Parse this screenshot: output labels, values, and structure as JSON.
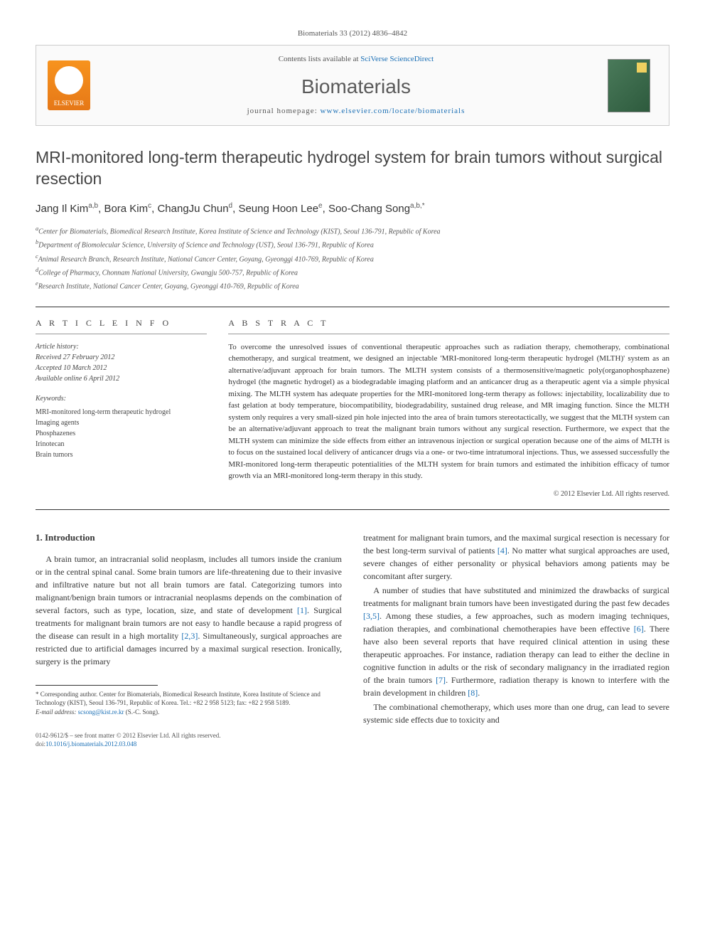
{
  "citation": "Biomaterials 33 (2012) 4836–4842",
  "banner": {
    "contents_prefix": "Contents lists available at ",
    "contents_link": "SciVerse ScienceDirect",
    "journal_name": "Biomaterials",
    "homepage_prefix": "journal homepage: ",
    "homepage_url": "www.elsevier.com/locate/biomaterials",
    "publisher": "ELSEVIER"
  },
  "title": "MRI-monitored long-term therapeutic hydrogel system for brain tumors without surgical resection",
  "authors_html": "Jang Il Kim<sup>a,b</sup>, Bora Kim<sup>c</sup>, ChangJu Chun<sup>d</sup>, Seung Hoon Lee<sup>e</sup>, Soo-Chang Song<sup>a,b,*</sup>",
  "affiliations": [
    "a Center for Biomaterials, Biomedical Research Institute, Korea Institute of Science and Technology (KIST), Seoul 136-791, Republic of Korea",
    "b Department of Biomolecular Science, University of Science and Technology (UST), Seoul 136-791, Republic of Korea",
    "c Animal Research Branch, Research Institute, National Cancer Center, Goyang, Gyeonggi 410-769, Republic of Korea",
    "d College of Pharmacy, Chonnam National University, Gwangju 500-757, Republic of Korea",
    "e Research Institute, National Cancer Center, Goyang, Gyeonggi 410-769, Republic of Korea"
  ],
  "article_info": {
    "header": "A R T I C L E   I N F O",
    "history_label": "Article history:",
    "history": [
      "Received 27 February 2012",
      "Accepted 10 March 2012",
      "Available online 6 April 2012"
    ],
    "keywords_label": "Keywords:",
    "keywords": [
      "MRI-monitored long-term therapeutic hydrogel",
      "Imaging agents",
      "Phosphazenes",
      "Irinotecan",
      "Brain tumors"
    ]
  },
  "abstract": {
    "header": "A B S T R A C T",
    "text": "To overcome the unresolved issues of conventional therapeutic approaches such as radiation therapy, chemotherapy, combinational chemotherapy, and surgical treatment, we designed an injectable 'MRI-monitored long-term therapeutic hydrogel (MLTH)' system as an alternative/adjuvant approach for brain tumors. The MLTH system consists of a thermosensitive/magnetic poly(organophosphazene) hydrogel (the magnetic hydrogel) as a biodegradable imaging platform and an anticancer drug as a therapeutic agent via a simple physical mixing. The MLTH system has adequate properties for the MRI-monitored long-term therapy as follows: injectability, localizability due to fast gelation at body temperature, biocompatibility, biodegradability, sustained drug release, and MR imaging function. Since the MLTH system only requires a very small-sized pin hole injected into the area of brain tumors stereotactically, we suggest that the MLTH system can be an alternative/adjuvant approach to treat the malignant brain tumors without any surgical resection. Furthermore, we expect that the MLTH system can minimize the side effects from either an intravenous injection or surgical operation because one of the aims of MLTH is to focus on the sustained local delivery of anticancer drugs via a one- or two-time intratumoral injections. Thus, we assessed successfully the MRI-monitored long-term therapeutic potentialities of the MLTH system for brain tumors and estimated the inhibition efficacy of tumor growth via an MRI-monitored long-term therapy in this study.",
    "copyright": "© 2012 Elsevier Ltd. All rights reserved."
  },
  "intro": {
    "heading": "1. Introduction",
    "para1": "A brain tumor, an intracranial solid neoplasm, includes all tumors inside the cranium or in the central spinal canal. Some brain tumors are life-threatening due to their invasive and infiltrative nature but not all brain tumors are fatal. Categorizing tumors into malignant/benign brain tumors or intracranial neoplasms depends on the combination of several factors, such as type, location, size, and state of development [1]. Surgical treatments for malignant brain tumors are not easy to handle because a rapid progress of the disease can result in a high mortality [2,3]. Simultaneously, surgical approaches are restricted due to artificial damages incurred by a maximal surgical resection. Ironically, surgery is the primary",
    "para2": "treatment for malignant brain tumors, and the maximal surgical resection is necessary for the best long-term survival of patients [4]. No matter what surgical approaches are used, severe changes of either personality or physical behaviors among patients may be concomitant after surgery.",
    "para3": "A number of studies that have substituted and minimized the drawbacks of surgical treatments for malignant brain tumors have been investigated during the past few decades [3,5]. Among these studies, a few approaches, such as modern imaging techniques, radiation therapies, and combinational chemotherapies have been effective [6]. There have also been several reports that have required clinical attention in using these therapeutic approaches. For instance, radiation therapy can lead to either the decline in cognitive function in adults or the risk of secondary malignancy in the irradiated region of the brain tumors [7]. Furthermore, radiation therapy is known to interfere with the brain development in children [8].",
    "para4": "The combinational chemotherapy, which uses more than one drug, can lead to severe systemic side effects due to toxicity and"
  },
  "footnote": {
    "corr": "* Corresponding author. Center for Biomaterials, Biomedical Research Institute, Korea Institute of Science and Technology (KIST), Seoul 136-791, Republic of Korea. Tel.: +82 2 958 5123; fax: +82 2 958 5189.",
    "email_label": "E-mail address: ",
    "email": "scsong@kist.re.kr",
    "email_suffix": " (S.-C. Song)."
  },
  "bottom": {
    "issn": "0142-9612/$ – see front matter © 2012 Elsevier Ltd. All rights reserved.",
    "doi_label": "doi:",
    "doi": "10.1016/j.biomaterials.2012.03.048"
  },
  "colors": {
    "link": "#1a6fb5",
    "elsevier_orange": "#f7931e",
    "journal_cover": "#2d5a3d"
  }
}
